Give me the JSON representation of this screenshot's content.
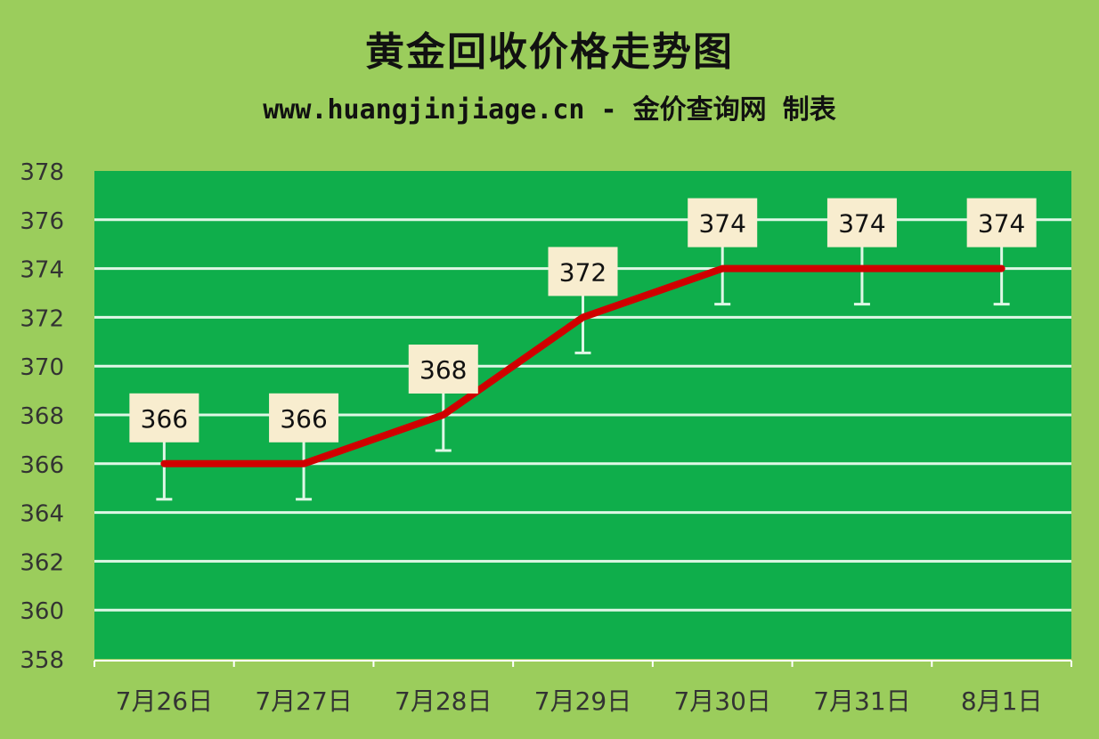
{
  "chart_data": {
    "type": "line",
    "title": "黄金回收价格走势图",
    "subtitle": "www.huangjinjiage.cn - 金价查询网 制表",
    "categories": [
      "7月26日",
      "7月27日",
      "7月28日",
      "7月29日",
      "7月30日",
      "7月31日",
      "8月1日"
    ],
    "values": [
      366,
      366,
      368,
      372,
      374,
      374,
      374
    ],
    "ylim": [
      358,
      378
    ],
    "yticks": [
      358,
      360,
      362,
      364,
      366,
      368,
      370,
      372,
      374,
      376,
      378
    ],
    "grid": true,
    "data_labels": true,
    "colors": {
      "background": "#9bcd5c",
      "plot": "#0fae4b",
      "grid": "#dff7e6",
      "line": "#d00000",
      "label_box": "#f8edcf"
    }
  }
}
